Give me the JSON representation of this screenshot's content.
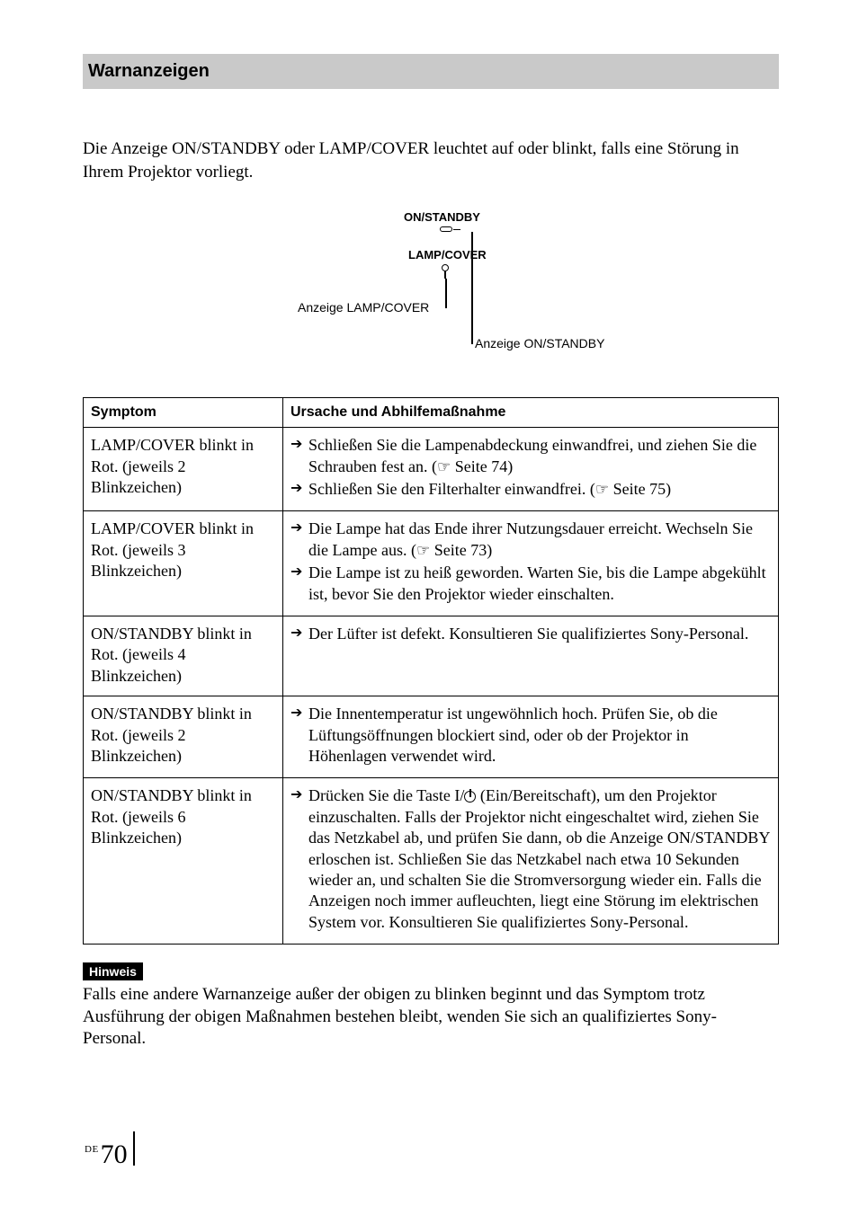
{
  "section_title": "Warnanzeigen",
  "intro": "Die Anzeige ON/STANDBY oder LAMP/COVER leuchtet auf oder blinkt, falls eine Störung in Ihrem Projektor vorliegt.",
  "diagram": {
    "label_onstandby": "ON/STANDBY",
    "label_lampcover": "LAMP/COVER",
    "callout_lampcover": "Anzeige LAMP/COVER",
    "callout_onstandby": "Anzeige ON/STANDBY"
  },
  "headers": {
    "symptom": "Symptom",
    "remedy": "Ursache und Abhilfemaßnahme"
  },
  "rows": [
    {
      "symptom": "LAMP/COVER blinkt in Rot. (jeweils 2 Blinkzeichen)",
      "remedies": [
        {
          "pre": "Schließen Sie die Lampenabdeckung einwandfrei, und ziehen Sie die Schrauben fest an. (",
          "page": "Seite 74",
          "post": ")"
        },
        {
          "pre": "Schließen Sie den Filterhalter einwandfrei. (",
          "page": "Seite 75",
          "post": ")"
        }
      ]
    },
    {
      "symptom": "LAMP/COVER blinkt in Rot. (jeweils 3 Blinkzeichen)",
      "remedies": [
        {
          "pre": "Die Lampe hat das Ende ihrer Nutzungsdauer erreicht. Wechseln Sie die Lampe aus. (",
          "page": "Seite 73",
          "post": ")"
        },
        {
          "plain": "Die Lampe ist zu heiß geworden. Warten Sie, bis die Lampe abgekühlt ist, bevor Sie den Projektor wieder einschalten."
        }
      ]
    },
    {
      "symptom": "ON/STANDBY blinkt in Rot. (jeweils 4 Blinkzeichen)",
      "remedies": [
        {
          "plain": "Der Lüfter ist defekt. Konsultieren Sie qualifiziertes Sony-Personal."
        }
      ]
    },
    {
      "symptom": "ON/STANDBY blinkt in Rot. (jeweils 2 Blinkzeichen)",
      "remedies": [
        {
          "plain": "Die Innentemperatur ist ungewöhnlich hoch. Prüfen Sie, ob die Lüftungsöffnungen blockiert sind, oder ob der Projektor in Höhenlagen verwendet wird."
        }
      ]
    },
    {
      "symptom": "ON/STANDBY blinkt in Rot. (jeweils 6 Blinkzeichen)",
      "remedies": [
        {
          "pre_power": true,
          "text_a": "Drücken Sie die Taste ",
          "taste": "I/",
          "text_b": " (Ein/Bereitschaft), um den Projektor einzuschalten. Falls der Projektor nicht eingeschaltet wird, ziehen Sie das Netzkabel ab, und prüfen Sie dann, ob die Anzeige ON/STANDBY erloschen ist. Schließen Sie das Netzkabel nach etwa 10 Sekunden wieder an, und schalten Sie die Stromversorgung wieder ein. Falls die Anzeigen noch immer aufleuchten, liegt eine Störung im elektrischen System vor. Konsultieren Sie qualifiziertes Sony-Personal."
        }
      ]
    }
  ],
  "note_label": "Hinweis",
  "note_text": "Falls eine andere Warnanzeige außer der obigen zu blinken beginnt und das Symptom trotz Ausführung der obigen Maßnahmen bestehen bleibt, wenden Sie sich an qualifiziertes Sony-Personal.",
  "footer": {
    "lang": "DE",
    "page": "70"
  },
  "style": {
    "header_bg": "#c9c9c9",
    "body_font_pt": 19,
    "arrow_glyph": "➔",
    "fist_glyph": "☞"
  }
}
